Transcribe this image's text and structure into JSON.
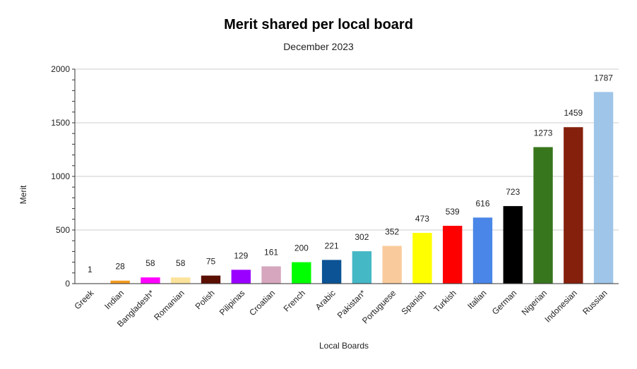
{
  "chart_data": {
    "type": "bar",
    "title": "Merit shared per local board",
    "subtitle": "December 2023",
    "xlabel": "Local Boards",
    "ylabel": "Merit",
    "ylim": [
      0,
      2000
    ],
    "yticks": [
      0,
      500,
      1000,
      1500,
      2000
    ],
    "grid": true,
    "legend": "none",
    "categories": [
      "Greek",
      "Indian",
      "Bangladesh*",
      "Romanian",
      "Polish",
      "Pilipinas",
      "Croatian",
      "French",
      "Arabic",
      "Pakistan*",
      "Portuguese",
      "Spanish",
      "Turkish",
      "Italian",
      "German",
      "Nigerian",
      "Indonesian",
      "Russian"
    ],
    "values": [
      1,
      28,
      58,
      58,
      75,
      129,
      161,
      200,
      221,
      302,
      352,
      473,
      539,
      616,
      723,
      1273,
      1459,
      1787
    ],
    "colors": [
      "#cccccc",
      "#f29a1e",
      "#ff00ff",
      "#fce39c",
      "#5b0f00",
      "#9900ff",
      "#d5a6bd",
      "#00ff00",
      "#0b5394",
      "#45b8c6",
      "#f9cb9c",
      "#ffff00",
      "#ff0000",
      "#4a86e8",
      "#000000",
      "#38761d",
      "#85200c",
      "#9fc5e8"
    ]
  }
}
